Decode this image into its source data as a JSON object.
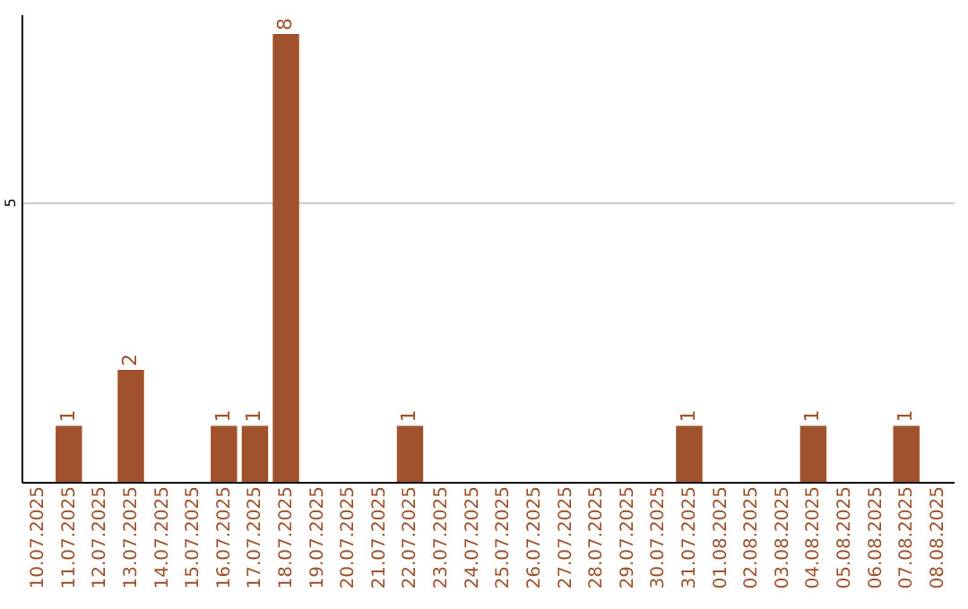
{
  "chart_data": {
    "type": "bar",
    "categories": [
      "10.07.2025",
      "11.07.2025",
      "12.07.2025",
      "13.07.2025",
      "14.07.2025",
      "15.07.2025",
      "16.07.2025",
      "17.07.2025",
      "18.07.2025",
      "19.07.2025",
      "20.07.2025",
      "21.07.2025",
      "22.07.2025",
      "23.07.2025",
      "24.07.2025",
      "25.07.2025",
      "26.07.2025",
      "27.07.2025",
      "28.07.2025",
      "29.07.2025",
      "30.07.2025",
      "31.07.2025",
      "01.08.2025",
      "02.08.2025",
      "03.08.2025",
      "04.08.2025",
      "05.08.2025",
      "06.08.2025",
      "07.08.2025",
      "08.08.2025"
    ],
    "values": [
      0,
      1,
      0,
      2,
      0,
      0,
      1,
      1,
      8,
      0,
      0,
      0,
      1,
      0,
      0,
      0,
      0,
      0,
      0,
      0,
      0,
      1,
      0,
      0,
      0,
      1,
      0,
      0,
      1,
      0
    ],
    "color": "#a0522d",
    "value_labels": [
      null,
      "1",
      null,
      "2",
      null,
      null,
      "1",
      "1",
      "8",
      null,
      null,
      null,
      "1",
      null,
      null,
      null,
      null,
      null,
      null,
      null,
      null,
      "1",
      null,
      null,
      null,
      "1",
      null,
      null,
      "1",
      null
    ],
    "ylim": [
      0,
      8.35
    ],
    "yticks": [
      5
    ],
    "grid": "y"
  }
}
